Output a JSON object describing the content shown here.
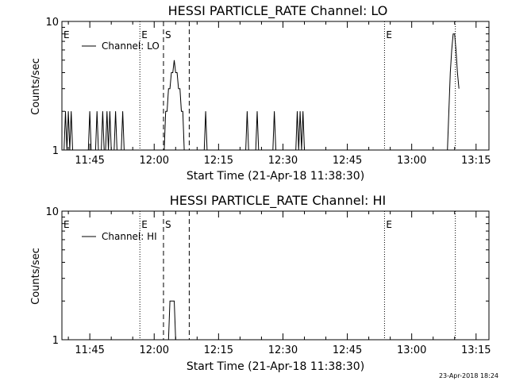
{
  "chart_data": [
    {
      "type": "line",
      "title": "HESSI PARTICLE_RATE Channel: LO",
      "xlabel": "Start Time (21-Apr-18 11:38:30)",
      "ylabel": "Counts/sec",
      "yscale": "log",
      "ylim": [
        1,
        10
      ],
      "xlim": [
        "11:38:30",
        "13:18:00"
      ],
      "x_ticks": [
        "11:45",
        "12:00",
        "12:15",
        "12:30",
        "12:45",
        "13:00",
        "13:15"
      ],
      "y_ticks": [
        "1",
        "10"
      ],
      "grid": false,
      "legend": {
        "placement": "top-left"
      },
      "markers": [
        {
          "label": "E",
          "time": "11:56:40",
          "style": "dotted"
        },
        {
          "label": "S",
          "time": "12:02:10",
          "style": "dashed"
        },
        {
          "label": "",
          "time": "12:08:10",
          "style": "dashed"
        },
        {
          "label": "E",
          "time": "12:53:40",
          "style": "dotted"
        },
        {
          "label": "",
          "time": "13:10:10",
          "style": "dotted"
        }
      ],
      "series": [
        {
          "name": "Channel: LO",
          "x": [
            "11:39:00",
            "11:39:20",
            "11:39:40",
            "11:40:00",
            "11:40:20",
            "11:40:40",
            "11:41:00",
            "11:44:40",
            "11:45:00",
            "11:45:20",
            "11:46:20",
            "11:46:40",
            "11:47:00",
            "11:47:40",
            "11:48:00",
            "11:48:20",
            "11:48:40",
            "11:49:00",
            "11:49:20",
            "11:49:40",
            "11:50:00",
            "11:50:40",
            "11:51:00",
            "11:51:20",
            "11:52:20",
            "11:52:40",
            "11:53:00",
            "12:02:20",
            "12:02:40",
            "12:03:00",
            "12:03:20",
            "12:03:40",
            "12:04:00",
            "12:04:20",
            "12:04:40",
            "12:05:00",
            "12:05:20",
            "12:05:40",
            "12:06:00",
            "12:06:20",
            "12:06:40",
            "12:07:00",
            "12:07:20",
            "12:07:40",
            "12:08:00",
            "12:11:40",
            "12:12:00",
            "12:12:20",
            "12:21:20",
            "12:21:40",
            "12:22:00",
            "12:23:40",
            "12:24:00",
            "12:24:20",
            "12:27:40",
            "12:28:00",
            "12:28:20",
            "12:33:00",
            "12:33:20",
            "12:33:40",
            "12:34:00",
            "12:34:20",
            "12:34:40",
            "12:35:00",
            "13:08:20",
            "13:08:40",
            "13:09:00",
            "13:09:20",
            "13:09:40",
            "13:10:00",
            "13:10:20",
            "13:10:40",
            "13:11:00"
          ],
          "values": [
            1,
            2,
            1,
            2,
            1,
            2,
            1,
            1,
            2,
            1,
            1,
            2,
            1,
            1,
            2,
            1,
            1,
            2,
            1,
            2,
            1,
            1,
            2,
            1,
            1,
            2,
            1,
            1,
            2,
            2,
            3,
            3,
            4,
            4,
            5,
            4,
            4,
            3,
            3,
            2,
            2,
            1,
            1,
            1,
            1,
            1,
            2,
            1,
            1,
            2,
            1,
            1,
            2,
            1,
            1,
            2,
            1,
            1,
            2,
            1,
            2,
            1,
            2,
            1,
            1,
            2,
            4,
            6,
            8,
            8,
            6,
            4,
            3
          ]
        }
      ]
    },
    {
      "type": "line",
      "title": "HESSI PARTICLE_RATE Channel: HI",
      "xlabel": "Start Time (21-Apr-18 11:38:30)",
      "ylabel": "Counts/sec",
      "yscale": "log",
      "ylim": [
        1,
        10
      ],
      "xlim": [
        "11:38:30",
        "13:18:00"
      ],
      "x_ticks": [
        "11:45",
        "12:00",
        "12:15",
        "12:30",
        "12:45",
        "13:00",
        "13:15"
      ],
      "y_ticks": [
        "1",
        "10"
      ],
      "grid": false,
      "legend": {
        "placement": "top-left"
      },
      "markers": [
        {
          "label": "E",
          "time": "11:56:40",
          "style": "dotted"
        },
        {
          "label": "S",
          "time": "12:02:10",
          "style": "dashed"
        },
        {
          "label": "",
          "time": "12:08:10",
          "style": "dashed"
        },
        {
          "label": "E",
          "time": "12:53:40",
          "style": "dotted"
        },
        {
          "label": "",
          "time": "13:10:10",
          "style": "dotted"
        }
      ],
      "series": [
        {
          "name": "Channel: HI",
          "x": [
            "12:03:20",
            "12:03:40",
            "12:04:00",
            "12:04:20",
            "12:04:40",
            "12:05:00",
            "12:05:20"
          ],
          "values": [
            1,
            2,
            2,
            2,
            2,
            1,
            1
          ]
        }
      ]
    }
  ],
  "footer": {
    "timestamp": "23-Apr-2018 18:24"
  }
}
